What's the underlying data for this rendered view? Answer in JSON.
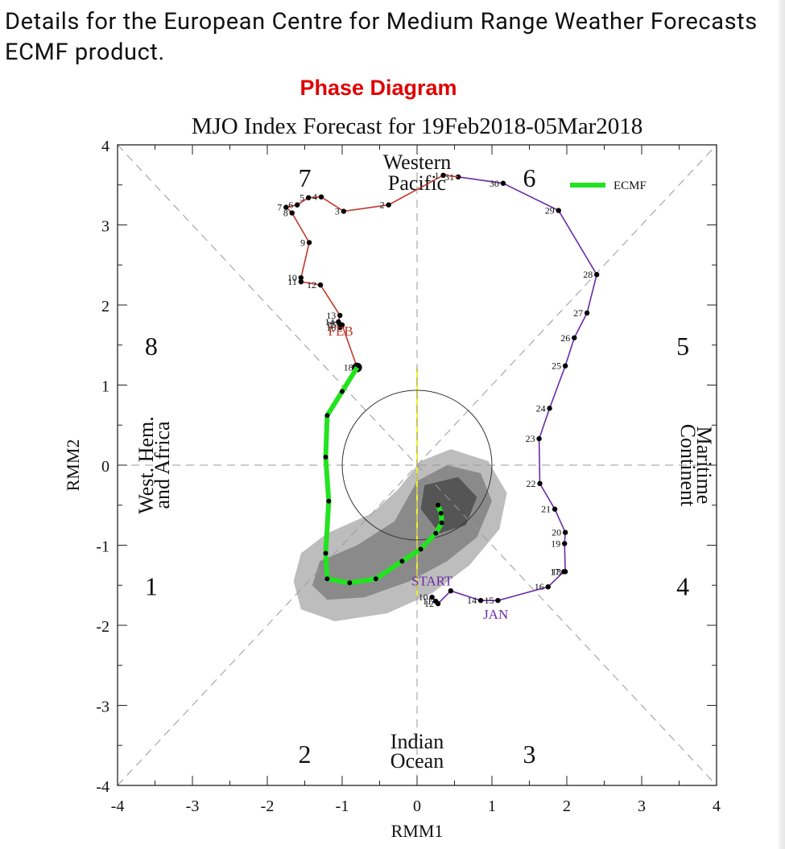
{
  "page": {
    "header_text": "Details for the European Centre for Medium Range Weather Forecasts ECMF product.",
    "subheading": "Phase Diagram"
  },
  "chart_data": {
    "type": "scatter",
    "title": "MJO Index Forecast for 19Feb2018-05Mar2018",
    "xlabel": "RMM1",
    "ylabel": "RMM2",
    "xlim": [
      -4,
      4
    ],
    "ylim": [
      -4,
      4
    ],
    "xticks": [
      "-4",
      "-3",
      "-2",
      "-1",
      "0",
      "1",
      "2",
      "3",
      "4"
    ],
    "yticks": [
      "-4",
      "-3",
      "-2",
      "-1",
      "0",
      "1",
      "2",
      "3",
      "4"
    ],
    "legend": {
      "label": "ECMF",
      "color": "#22e31f",
      "placement": "top-right"
    },
    "phase_labels": [
      {
        "text": "1",
        "x": -3.55,
        "y": -1.5
      },
      {
        "text": "2",
        "x": -1.5,
        "y": -3.6
      },
      {
        "text": "3",
        "x": 1.5,
        "y": -3.6
      },
      {
        "text": "4",
        "x": 3.55,
        "y": -1.5
      },
      {
        "text": "5",
        "x": 3.55,
        "y": 1.5
      },
      {
        "text": "6",
        "x": 1.5,
        "y": 3.6
      },
      {
        "text": "7",
        "x": -1.5,
        "y": 3.6
      },
      {
        "text": "8",
        "x": -3.55,
        "y": 1.5
      }
    ],
    "region_labels": {
      "top": [
        "Western",
        "Pacific"
      ],
      "bottom": [
        "Indian",
        "Ocean"
      ],
      "left": [
        "West. Hem.",
        "and Africa"
      ],
      "right": [
        "Maritime",
        "Continent"
      ]
    },
    "month_labels": [
      {
        "text": "START",
        "x": 0.2,
        "y": -1.5,
        "color": "#6a2aa8"
      },
      {
        "text": "JAN",
        "x": 1.05,
        "y": -1.92,
        "color": "#6a2aa8"
      },
      {
        "text": "FEB",
        "x": -1.02,
        "y": 1.62,
        "color": "#c0392b"
      }
    ],
    "january": {
      "color": "#6a2aa8",
      "points": [
        {
          "x": 0.2,
          "y": -1.65,
          "label": "10"
        },
        {
          "x": 0.25,
          "y": -1.7,
          "label": "11"
        },
        {
          "x": 0.28,
          "y": -1.73,
          "label": "12"
        },
        {
          "x": 0.45,
          "y": -1.57,
          "label": ""
        },
        {
          "x": 0.85,
          "y": -1.69,
          "label": "14"
        },
        {
          "x": 1.08,
          "y": -1.69,
          "label": "15"
        },
        {
          "x": 1.75,
          "y": -1.52,
          "label": "16"
        },
        {
          "x": 1.96,
          "y": -1.33,
          "label": "17"
        },
        {
          "x": 1.98,
          "y": -1.33,
          "label": "18"
        },
        {
          "x": 1.97,
          "y": -0.98,
          "label": "19"
        },
        {
          "x": 1.98,
          "y": -0.84,
          "label": "20"
        },
        {
          "x": 1.84,
          "y": -0.55,
          "label": "21"
        },
        {
          "x": 1.64,
          "y": -0.23,
          "label": "22"
        },
        {
          "x": 1.63,
          "y": 0.33,
          "label": "23"
        },
        {
          "x": 1.77,
          "y": 0.71,
          "label": "24"
        },
        {
          "x": 1.98,
          "y": 1.24,
          "label": "25"
        },
        {
          "x": 2.1,
          "y": 1.59,
          "label": "26"
        },
        {
          "x": 2.27,
          "y": 1.9,
          "label": "27"
        },
        {
          "x": 2.4,
          "y": 2.38,
          "label": "28"
        },
        {
          "x": 1.89,
          "y": 3.18,
          "label": "29"
        },
        {
          "x": 1.15,
          "y": 3.52,
          "label": "30"
        },
        {
          "x": 0.55,
          "y": 3.6,
          "label": "31"
        }
      ]
    },
    "february": {
      "color": "#c0392b",
      "points": [
        {
          "x": 0.35,
          "y": 3.62,
          "label": "1"
        },
        {
          "x": -0.38,
          "y": 3.25,
          "label": "2"
        },
        {
          "x": -0.98,
          "y": 3.17,
          "label": "3"
        },
        {
          "x": -1.28,
          "y": 3.35,
          "label": "4"
        },
        {
          "x": -1.45,
          "y": 3.34,
          "label": "5"
        },
        {
          "x": -1.6,
          "y": 3.25,
          "label": "6"
        },
        {
          "x": -1.75,
          "y": 3.22,
          "label": "7"
        },
        {
          "x": -1.67,
          "y": 3.15,
          "label": "8"
        },
        {
          "x": -1.44,
          "y": 2.78,
          "label": "9"
        },
        {
          "x": -1.55,
          "y": 2.34,
          "label": "10"
        },
        {
          "x": -1.55,
          "y": 2.29,
          "label": "11"
        },
        {
          "x": -1.29,
          "y": 2.25,
          "label": "12"
        },
        {
          "x": -1.03,
          "y": 1.87,
          "label": "13"
        },
        {
          "x": -1.05,
          "y": 1.79,
          "label": "14"
        },
        {
          "x": -1.03,
          "y": 1.76,
          "label": "15"
        },
        {
          "x": -1.03,
          "y": 1.72,
          "label": "16"
        },
        {
          "x": -1.0,
          "y": 1.75,
          "label": "17"
        },
        {
          "x": -0.8,
          "y": 1.22,
          "label": "18"
        }
      ]
    },
    "forecast_mean": {
      "name": "ECMF",
      "color": "#22e31f",
      "points": [
        {
          "x": -0.8,
          "y": 1.22
        },
        {
          "x": -1.0,
          "y": 0.92
        },
        {
          "x": -1.2,
          "y": 0.62
        },
        {
          "x": -1.22,
          "y": 0.1
        },
        {
          "x": -1.18,
          "y": -0.45
        },
        {
          "x": -1.22,
          "y": -1.1
        },
        {
          "x": -1.2,
          "y": -1.42
        },
        {
          "x": -0.9,
          "y": -1.47
        },
        {
          "x": -0.55,
          "y": -1.42
        },
        {
          "x": -0.2,
          "y": -1.2
        },
        {
          "x": 0.05,
          "y": -1.05
        },
        {
          "x": 0.25,
          "y": -0.85
        },
        {
          "x": 0.33,
          "y": -0.72
        },
        {
          "x": 0.32,
          "y": -0.6
        },
        {
          "x": 0.28,
          "y": -0.5
        }
      ]
    }
  }
}
